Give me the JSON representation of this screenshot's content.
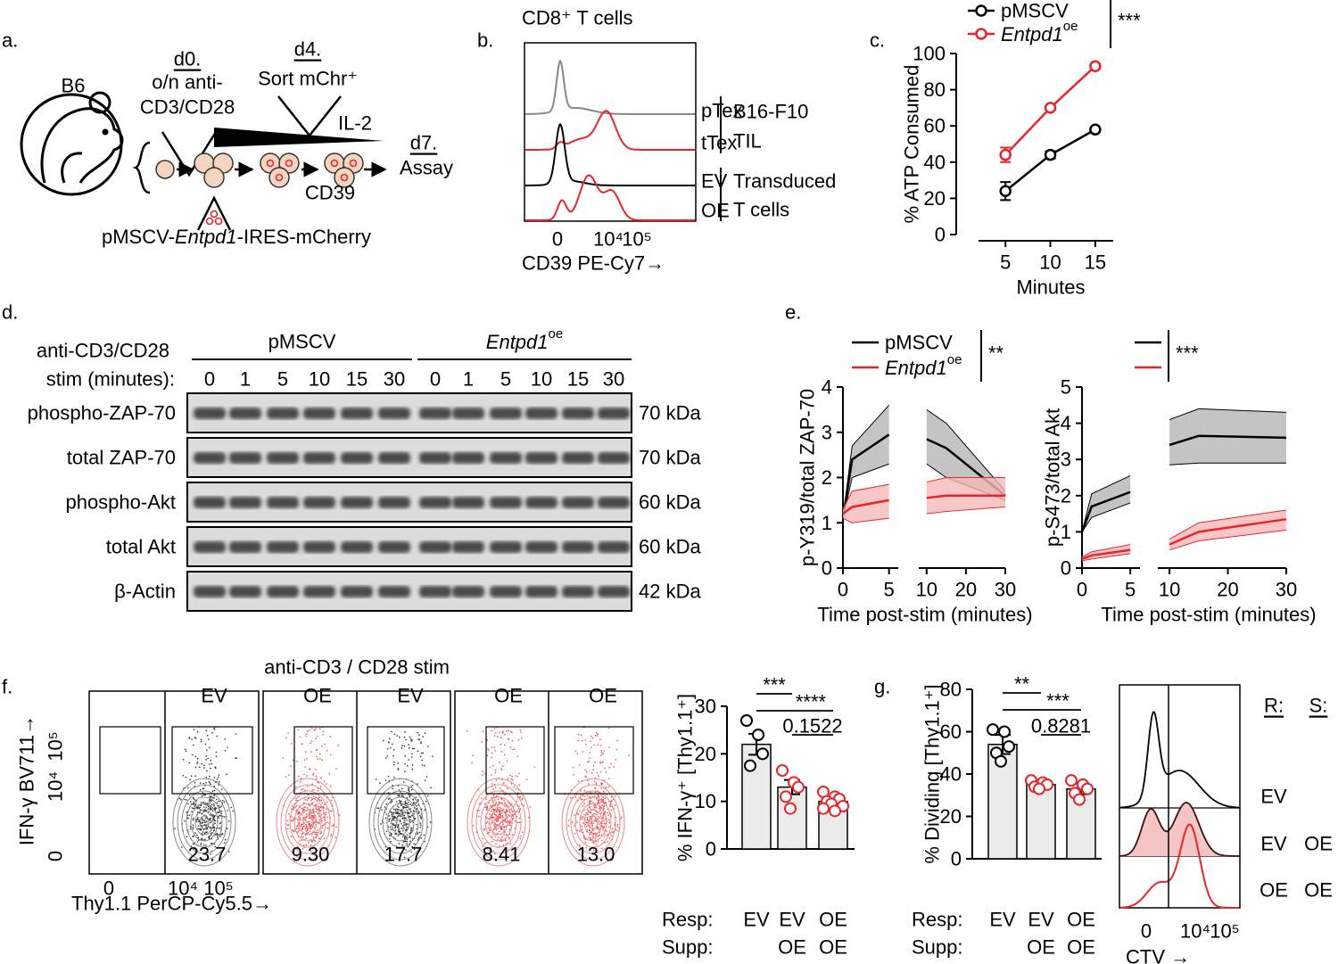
{
  "panels": [
    "a.",
    "b.",
    "c.",
    "d.",
    "e.",
    "f.",
    "g."
  ],
  "panel_a": {
    "mouse": "B6",
    "d0": "d0.",
    "d0_text": [
      "o/n anti-",
      "CD3/CD28"
    ],
    "d4": "d4.",
    "d4_text": "Sort mChr⁺",
    "cytokine": "IL-2",
    "d7": "d7.",
    "d7_text": "Assay",
    "marker": "CD39",
    "construct": [
      "pMSCV-",
      "Entpd1",
      "-IRES-mCherry"
    ]
  },
  "panel_b": {
    "title": "CD8⁺ T cells",
    "samples": [
      "pTex",
      "tTex",
      "EV",
      "OE"
    ],
    "groups": [
      [
        "B16-F10",
        "TIL"
      ],
      [
        "Transduced",
        "T cells"
      ]
    ],
    "xticks": [
      "0",
      "10⁴",
      "10⁵"
    ],
    "xlabel": "CD39 PE-Cy7→"
  },
  "panel_d": {
    "stim_label": [
      "anti-CD3/CD28",
      "stim (minutes):"
    ],
    "groups": [
      {
        "name": "pMSCV",
        "lanes": [
          "0",
          "1",
          "5",
          "10",
          "15",
          "30"
        ]
      },
      {
        "name": "Entpd1",
        "name_sup": "oe",
        "lanes": [
          "0",
          "1",
          "5",
          "10",
          "15",
          "30"
        ]
      }
    ],
    "rows": [
      {
        "protein": "phospho-ZAP-70",
        "size": "70 kDa"
      },
      {
        "protein": "total ZAP-70",
        "size": "70 kDa"
      },
      {
        "protein": "phospho-Akt",
        "size": "60 kDa"
      },
      {
        "protein": "total Akt",
        "size": "60 kDa"
      },
      {
        "protein": "β-Actin",
        "size": "42 kDa"
      }
    ]
  },
  "panel_f": {
    "title": "anti-CD3 / CD28 stim",
    "ylabel": "IFN-γ BV711→",
    "xlabel": "Thy1.1 PerCP-Cy5.5→",
    "yticks": [
      "0",
      "10⁴",
      "10⁵"
    ],
    "xticks": [
      "0",
      "10⁴",
      "10⁵"
    ],
    "plots": [
      {
        "label": "EV",
        "gate": "23.7",
        "color": "#000000"
      },
      {
        "label": "OE",
        "gate": "9.30",
        "color": "#e8262a"
      },
      {
        "label": "EV",
        "gate": "17.7",
        "color": "#000000"
      },
      {
        "label": "OE",
        "gate": "8.41",
        "color": "#e8262a"
      },
      {
        "label": "OE",
        "gate": "13.0",
        "color": "#e8262a"
      }
    ]
  },
  "panel_g_hist": {
    "row_headers": [
      "R:",
      "S:"
    ],
    "responder": [
      "EV",
      "EV",
      "OE"
    ],
    "responder_colors": [
      "#000000",
      "#000000",
      "#e8262a"
    ],
    "suppressor": [
      null,
      "OE",
      "OE"
    ],
    "suppressor_colors": [
      null,
      "#e8262a",
      "#e8262a"
    ],
    "xticks": [
      "0",
      "10⁴",
      "10⁵"
    ],
    "xlabel": "CTV →"
  },
  "chart_data": [
    {
      "type": "line",
      "xlabel": "Minutes",
      "ylabel": "% ATP Consumed",
      "x": [
        5,
        10,
        15
      ],
      "xlim": [
        2,
        17
      ],
      "xticks": [
        5,
        10,
        15
      ],
      "ylim": [
        0,
        100
      ],
      "yticks": [
        0,
        20,
        40,
        60,
        80,
        100
      ],
      "series": [
        {
          "name": "pMSCV",
          "color": "#000000",
          "values": [
            24,
            44,
            58
          ],
          "errors": [
            5,
            2,
            1
          ]
        },
        {
          "name": "Entpd1",
          "name_sup": "oe",
          "color": "#e8262a",
          "values": [
            44,
            70,
            93
          ],
          "errors": [
            4,
            1,
            1
          ]
        }
      ],
      "annotation": "***"
    },
    {
      "type": "line",
      "xlabel": "Time post-stim (minutes)",
      "ylabel": "p-Y319/total ZAP-70",
      "x": [
        0,
        1,
        5,
        10,
        15,
        30
      ],
      "xlim": [
        0,
        30
      ],
      "xbreak": [
        6,
        8
      ],
      "xticks": [
        0,
        5,
        10,
        20,
        30
      ],
      "ylim": [
        0,
        4
      ],
      "yticks": [
        0,
        1,
        2,
        3,
        4
      ],
      "series": [
        {
          "name": "pMSCV",
          "color": "#000000",
          "band_color": "#b5b5b5",
          "values": [
            1.1,
            2.4,
            2.95,
            2.85,
            2.65,
            1.6
          ],
          "lower": [
            1.1,
            2.0,
            2.3,
            2.3,
            2.0,
            1.5
          ],
          "upper": [
            1.1,
            2.7,
            3.6,
            3.5,
            3.2,
            1.7
          ]
        },
        {
          "name": "Entpd1",
          "name_sup": "oe",
          "color": "#e8262a",
          "band_color": "#f5b8b8",
          "values": [
            1.2,
            1.35,
            1.5,
            1.55,
            1.6,
            1.6
          ],
          "lower": [
            1.1,
            1.0,
            1.1,
            1.2,
            1.25,
            1.35
          ],
          "upper": [
            1.3,
            1.7,
            1.85,
            1.9,
            2.0,
            2.0
          ]
        }
      ],
      "annotation": "**"
    },
    {
      "type": "line",
      "xlabel": "Time post-stim (minutes)",
      "ylabel": "p-S473/total Akt",
      "x": [
        0,
        1,
        5,
        10,
        15,
        30
      ],
      "xlim": [
        0,
        30
      ],
      "xbreak": [
        6,
        8
      ],
      "xticks": [
        0,
        5,
        10,
        20,
        30
      ],
      "ylim": [
        0,
        5
      ],
      "yticks": [
        0,
        1,
        2,
        3,
        4,
        5
      ],
      "series": [
        {
          "color": "#000000",
          "band_color": "#b5b5b5",
          "values": [
            1.0,
            1.7,
            2.1,
            3.4,
            3.65,
            3.6
          ],
          "lower": [
            1.0,
            1.4,
            1.8,
            2.85,
            2.9,
            2.9
          ],
          "upper": [
            1.0,
            2.05,
            2.55,
            4.1,
            4.4,
            4.3
          ]
        },
        {
          "color": "#e8262a",
          "band_color": "#f5b8b8",
          "values": [
            0.25,
            0.35,
            0.5,
            0.65,
            1.0,
            1.35
          ],
          "lower": [
            0.2,
            0.25,
            0.4,
            0.5,
            0.75,
            1.05
          ],
          "upper": [
            0.3,
            0.45,
            0.65,
            0.8,
            1.25,
            1.6
          ]
        }
      ],
      "annotation": "***"
    },
    {
      "type": "bar",
      "ylabel": "% IFN-γ⁺ [Thy1.1⁺]",
      "row_labels": [
        "Resp:",
        "Supp:"
      ],
      "categories": [
        "EV",
        "EV",
        "OE"
      ],
      "categories2": [
        null,
        "OE",
        "OE"
      ],
      "values": [
        22,
        13,
        10
      ],
      "errors": [
        2.2,
        1.5,
        0.7
      ],
      "points": [
        [
          27,
          24,
          20,
          17.5
        ],
        [
          16.5,
          14,
          13,
          11,
          8.5
        ],
        [
          12,
          11,
          10.5,
          10,
          9.5,
          9,
          8.5,
          8
        ]
      ],
      "point_colors": [
        "#000000",
        "#e8262a",
        "#e8262a"
      ],
      "bar_color": "#ebebeb",
      "ylim": [
        0,
        30
      ],
      "yticks": [
        0,
        10,
        20,
        30
      ],
      "comparisons": [
        {
          "pair": [
            0,
            1
          ],
          "label": "***"
        },
        {
          "pair": [
            0,
            2
          ],
          "label": "****"
        },
        {
          "pair": [
            1,
            2
          ],
          "label": "0.1522"
        }
      ]
    },
    {
      "type": "bar",
      "ylabel": "% Dividing [Thy1.1⁺]",
      "row_labels": [
        "Resp:",
        "Supp:"
      ],
      "categories": [
        "EV",
        "EV",
        "OE"
      ],
      "categories2": [
        null,
        "OE",
        "OE"
      ],
      "values": [
        54,
        35,
        33
      ],
      "errors": [
        4.5,
        1.5,
        2.5
      ],
      "points": [
        [
          61,
          60,
          53,
          50,
          46
        ],
        [
          37,
          36,
          35,
          34,
          33
        ],
        [
          37,
          35,
          33,
          31,
          28
        ]
      ],
      "point_colors": [
        "#000000",
        "#e8262a",
        "#e8262a"
      ],
      "bar_color": "#ebebeb",
      "ylim": [
        0,
        80
      ],
      "yticks": [
        0,
        20,
        40,
        60,
        80
      ],
      "comparisons": [
        {
          "pair": [
            0,
            1
          ],
          "label": "**"
        },
        {
          "pair": [
            0,
            2
          ],
          "label": "***"
        },
        {
          "pair": [
            1,
            2
          ],
          "label": "0.8281"
        }
      ]
    }
  ]
}
